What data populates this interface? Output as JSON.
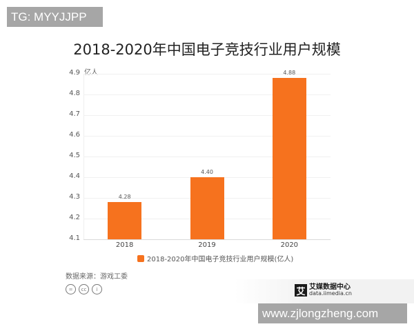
{
  "watermark_top": "TG: MYYJJPP",
  "watermark_bottom": "www.zjlongzheng.com",
  "title": "2018-2020年中国电子竞技行业用户规模",
  "source": "数据来源：游戏工委",
  "logo": {
    "cn": "艾媒数据中心",
    "en": "data.iimedia.cn",
    "mark": "艾"
  },
  "cc_icons": [
    "=",
    "cc",
    "i"
  ],
  "colors": {
    "bar": "#f6721e"
  },
  "chart_data": {
    "type": "bar",
    "title": "2018-2020年中国电子竞技行业用户规模",
    "categories": [
      "2018",
      "2019",
      "2020"
    ],
    "series": [
      {
        "name": "2018-2020年中国电子竞技行业用户规模(亿人)",
        "values": [
          4.28,
          4.4,
          4.88
        ]
      }
    ],
    "value_labels": [
      "4.28",
      "4.40",
      "4.88"
    ],
    "xlabel": "",
    "ylabel": "亿人",
    "ylim": [
      4.1,
      4.9
    ],
    "yticks": [
      "4.1",
      "4.2",
      "4.3",
      "4.4",
      "4.5",
      "4.6",
      "4.7",
      "4.8",
      "4.9"
    ],
    "grid": true,
    "legend_position": "bottom"
  }
}
